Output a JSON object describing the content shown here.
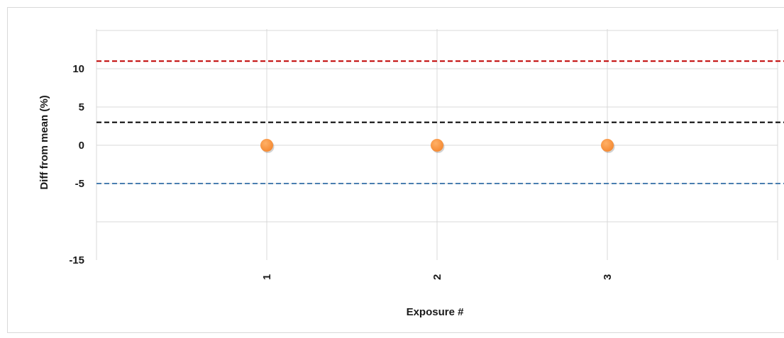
{
  "chart_data": {
    "type": "scatter",
    "title": "",
    "xlabel": "Exposure #",
    "ylabel": "Diff from mean (%)",
    "categories": [
      "1",
      "2",
      "3"
    ],
    "x": [
      1,
      2,
      3
    ],
    "series": [
      {
        "values": [
          0,
          0,
          0
        ],
        "color": "#f58a33"
      }
    ],
    "y_ticks": [
      "10",
      "5",
      "0",
      "-5",
      "-15"
    ],
    "ylim": [
      -15,
      15
    ],
    "reference_lines": [
      {
        "y": 11,
        "color": "#c00000",
        "style": "dashed"
      },
      {
        "y": 3,
        "color": "#000000",
        "style": "dashed"
      },
      {
        "y": -5,
        "color": "#4a7fb0",
        "style": "dashed"
      }
    ],
    "grid": true,
    "legend": "none"
  }
}
